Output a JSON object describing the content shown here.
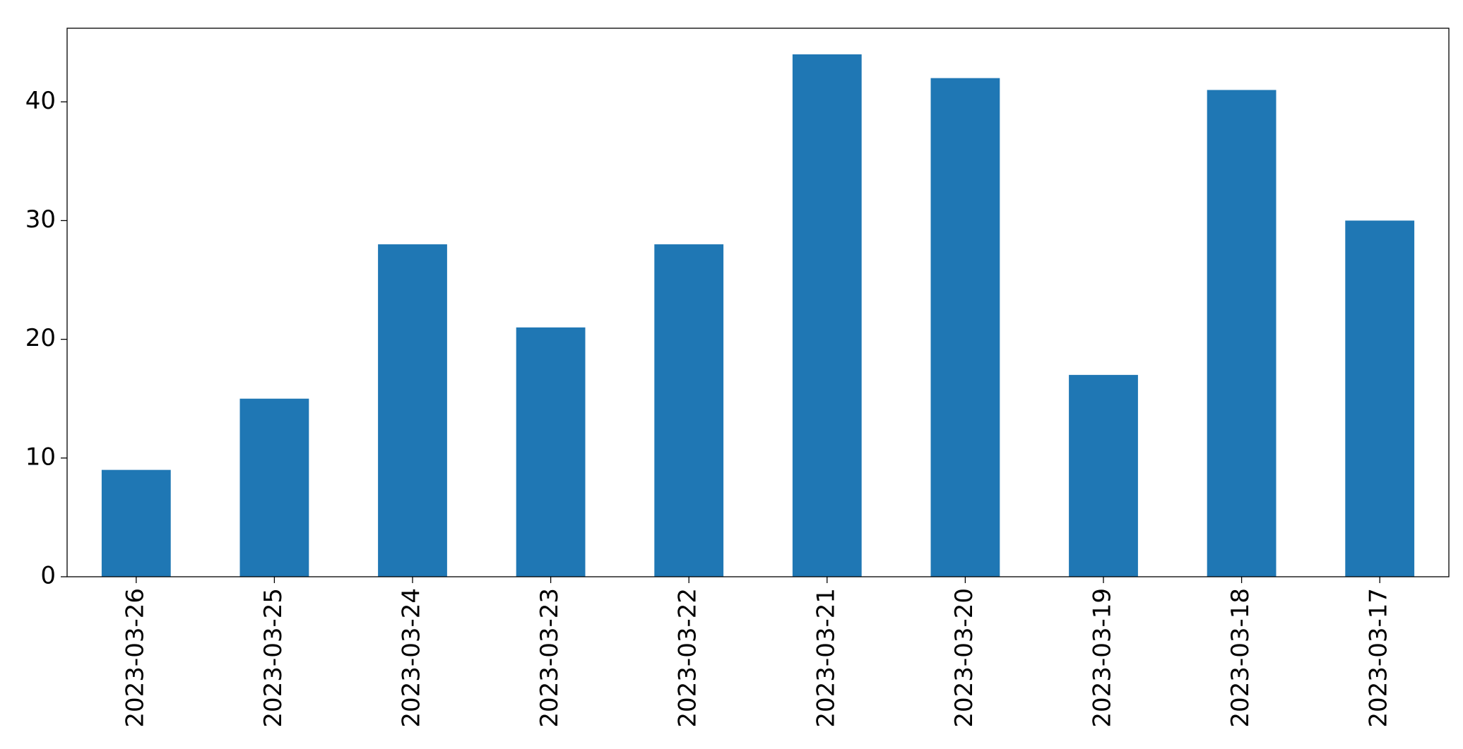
{
  "chart_data": {
    "type": "bar",
    "categories": [
      "2023-03-26",
      "2023-03-25",
      "2023-03-24",
      "2023-03-23",
      "2023-03-22",
      "2023-03-21",
      "2023-03-20",
      "2023-03-19",
      "2023-03-18",
      "2023-03-17"
    ],
    "values": [
      9,
      15,
      28,
      21,
      28,
      44,
      42,
      17,
      41,
      30
    ],
    "color": "#1f77b4",
    "ylim": [
      0,
      46.2
    ],
    "yticks": [
      0,
      10,
      20,
      30,
      40
    ],
    "grid": false
  }
}
